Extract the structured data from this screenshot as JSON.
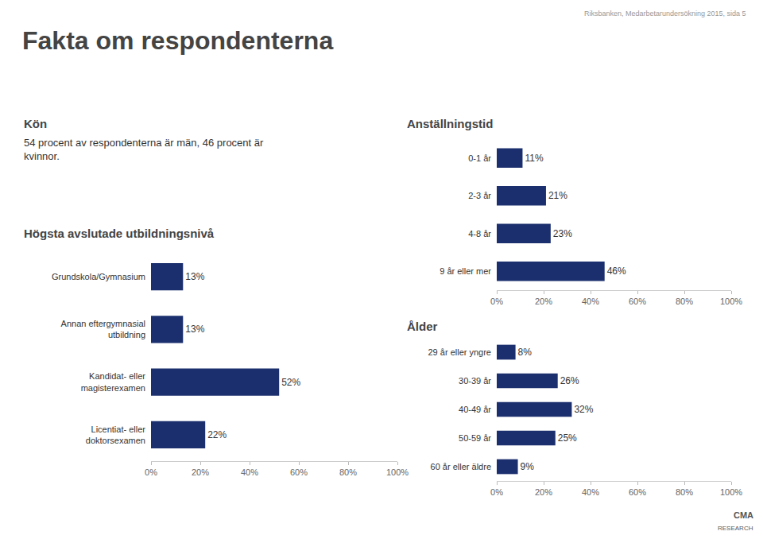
{
  "title": "Fakta om respondenterna",
  "subtitle": "Riksbanken, Medarbetarundersökning 2015, sida 5",
  "annotations": [
    "Kön",
    "54 procent av respondenterna är män, 46 procent är\nkvinnor.",
    "CMA",
    "RESEARCH"
  ],
  "chart_data": [
    {
      "type": "bar",
      "orientation": "horizontal",
      "title": "Högsta avslutade utbildningsnivå",
      "categories": [
        "Grundskola/Gymnasium",
        "Annan eftergymnasial\nutbildning",
        "Kandidat- eller\nmagisterexamen",
        "Licentiat- eller\ndoktorsexamen"
      ],
      "values": [
        13,
        13,
        52,
        22
      ],
      "value_labels": [
        "13%",
        "13%",
        "52%",
        "22%"
      ],
      "data_labels": true,
      "color": "#1b2f6e",
      "xlim": [
        0,
        100
      ],
      "xticks": [
        {
          "value": 0,
          "label": "0%"
        },
        {
          "value": 20,
          "label": "20%"
        },
        {
          "value": 40,
          "label": "40%"
        },
        {
          "value": 60,
          "label": "60%"
        },
        {
          "value": 80,
          "label": "80%"
        },
        {
          "value": 100,
          "label": "100%"
        }
      ],
      "grid": false
    },
    {
      "type": "bar",
      "orientation": "horizontal",
      "title": "Anställningstid",
      "categories": [
        "0-1 år",
        "2-3 år",
        "4-8 år",
        "9 år eller mer"
      ],
      "values": [
        11,
        21,
        23,
        46
      ],
      "value_labels": [
        "11%",
        "21%",
        "23%",
        "46%"
      ],
      "data_labels": true,
      "color": "#1b2f6e",
      "xlim": [
        0,
        100
      ],
      "xticks": [
        {
          "value": 0,
          "label": "0%"
        },
        {
          "value": 20,
          "label": "20%"
        },
        {
          "value": 40,
          "label": "40%"
        },
        {
          "value": 60,
          "label": "60%"
        },
        {
          "value": 80,
          "label": "80%"
        },
        {
          "value": 100,
          "label": "100%"
        }
      ],
      "grid": false
    },
    {
      "type": "bar",
      "orientation": "horizontal",
      "title": "Ålder",
      "categories": [
        "29 år eller yngre",
        "30-39 år",
        "40-49 år",
        "50-59 år",
        "60 år eller äldre"
      ],
      "values": [
        8,
        26,
        32,
        25,
        9
      ],
      "value_labels": [
        "8%",
        "26%",
        "32%",
        "25%",
        "9%"
      ],
      "data_labels": true,
      "color": "#1b2f6e",
      "xlim": [
        0,
        100
      ],
      "xticks": [
        {
          "value": 0,
          "label": "0%"
        },
        {
          "value": 20,
          "label": "20%"
        },
        {
          "value": 40,
          "label": "40%"
        },
        {
          "value": 60,
          "label": "60%"
        },
        {
          "value": 80,
          "label": "80%"
        },
        {
          "value": 100,
          "label": "100%"
        }
      ],
      "grid": false
    }
  ]
}
